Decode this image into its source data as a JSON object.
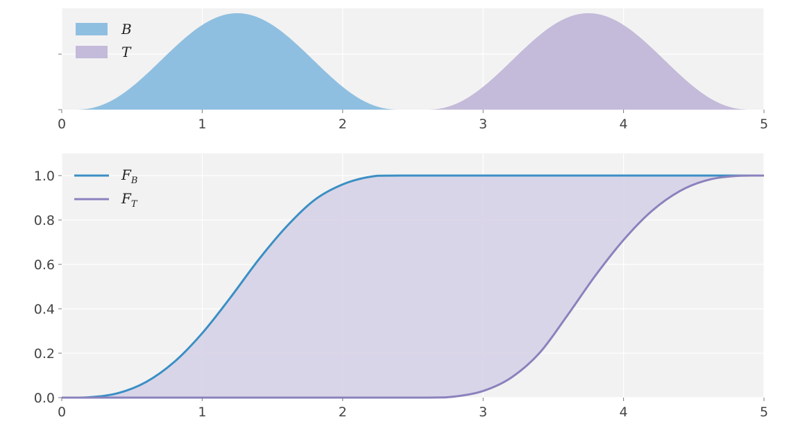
{
  "chart_data": [
    {
      "type": "area",
      "subtype": "histogram",
      "xlim": [
        0,
        5
      ],
      "xticks": [
        "0",
        "1",
        "2",
        "3",
        "4",
        "5"
      ],
      "grid": true,
      "legend_position": "top-left",
      "series": [
        {
          "name": "B",
          "color": "#8fbfe0",
          "center": 1.25,
          "support": [
            0.1,
            2.4
          ],
          "peak_relative": 1.0
        },
        {
          "name": "T",
          "color": "#c4bad9",
          "center": 3.75,
          "support": [
            2.6,
            4.9
          ],
          "peak_relative": 1.0
        }
      ]
    },
    {
      "type": "line",
      "xlim": [
        0,
        5
      ],
      "ylim": [
        0,
        1.1
      ],
      "xticks": [
        "0",
        "1",
        "2",
        "3",
        "4",
        "5"
      ],
      "yticks": [
        "0.0",
        "0.2",
        "0.4",
        "0.6",
        "0.8",
        "1.0"
      ],
      "grid": true,
      "legend_position": "top-left",
      "fill_between": {
        "color": "#d6d2e7"
      },
      "series": [
        {
          "name": "F",
          "subscript": "B",
          "color": "#3a8fc4",
          "x": [
            0,
            0.2,
            0.4,
            0.6,
            0.8,
            1.0,
            1.2,
            1.4,
            1.6,
            1.8,
            2.0,
            2.2,
            2.4,
            3.0,
            4.0,
            5.0
          ],
          "y": [
            0,
            0.002,
            0.02,
            0.07,
            0.16,
            0.29,
            0.45,
            0.62,
            0.77,
            0.89,
            0.96,
            0.995,
            1.0,
            1.0,
            1.0,
            1.0
          ]
        },
        {
          "name": "F",
          "subscript": "T",
          "color": "#8a82bd",
          "x": [
            0,
            1.0,
            2.0,
            2.6,
            2.8,
            3.0,
            3.2,
            3.4,
            3.6,
            3.8,
            4.0,
            4.2,
            4.4,
            4.6,
            4.8,
            5.0
          ],
          "y": [
            0,
            0,
            0,
            0,
            0.005,
            0.03,
            0.09,
            0.2,
            0.37,
            0.55,
            0.71,
            0.84,
            0.93,
            0.98,
            0.998,
            1.0
          ]
        }
      ]
    }
  ]
}
